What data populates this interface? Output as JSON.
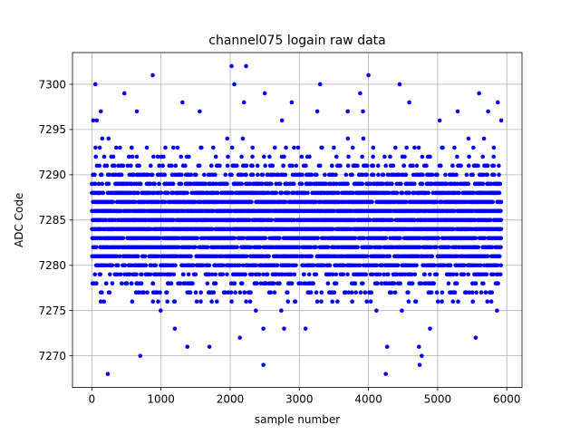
{
  "chart_data": {
    "type": "scatter",
    "title": "channel075 logain raw data",
    "xlabel": "sample number",
    "ylabel": "ADC Code",
    "xlim": [
      -280,
      6220
    ],
    "ylim": [
      7266.5,
      7303.5
    ],
    "xticks": [
      0,
      1000,
      2000,
      3000,
      4000,
      5000,
      6000
    ],
    "yticks": [
      7270,
      7275,
      7280,
      7285,
      7290,
      7295,
      7300
    ],
    "grid": true,
    "marker_color": "#0000ff",
    "n_samples": 5920,
    "x_range": [
      0,
      5920
    ],
    "y_core_range": [
      7276,
      7293
    ],
    "y_center": 7284.5,
    "outliers": [
      {
        "x": 230,
        "y": 7268
      },
      {
        "x": 4250,
        "y": 7268
      },
      {
        "x": 2480,
        "y": 7269
      },
      {
        "x": 4740,
        "y": 7269
      },
      {
        "x": 700,
        "y": 7270
      },
      {
        "x": 4770,
        "y": 7270
      },
      {
        "x": 1380,
        "y": 7271
      },
      {
        "x": 1700,
        "y": 7271
      },
      {
        "x": 4270,
        "y": 7271
      },
      {
        "x": 4730,
        "y": 7271
      },
      {
        "x": 2140,
        "y": 7272
      },
      {
        "x": 5550,
        "y": 7272
      },
      {
        "x": 1200,
        "y": 7273
      },
      {
        "x": 2480,
        "y": 7273
      },
      {
        "x": 2780,
        "y": 7273
      },
      {
        "x": 3090,
        "y": 7273
      },
      {
        "x": 4890,
        "y": 7273
      },
      {
        "x": 50,
        "y": 7300
      },
      {
        "x": 880,
        "y": 7301
      },
      {
        "x": 2020,
        "y": 7302
      },
      {
        "x": 2230,
        "y": 7302
      },
      {
        "x": 3300,
        "y": 7300
      },
      {
        "x": 4000,
        "y": 7301
      },
      {
        "x": 4450,
        "y": 7300
      },
      {
        "x": 2060,
        "y": 7300
      },
      {
        "x": 470,
        "y": 7299
      },
      {
        "x": 2500,
        "y": 7299
      },
      {
        "x": 3880,
        "y": 7299
      },
      {
        "x": 5600,
        "y": 7299
      },
      {
        "x": 1310,
        "y": 7298
      },
      {
        "x": 2200,
        "y": 7298
      },
      {
        "x": 2890,
        "y": 7298
      },
      {
        "x": 4590,
        "y": 7298
      },
      {
        "x": 5870,
        "y": 7298
      },
      {
        "x": 130,
        "y": 7297
      },
      {
        "x": 650,
        "y": 7297
      },
      {
        "x": 1560,
        "y": 7297
      },
      {
        "x": 3260,
        "y": 7297
      },
      {
        "x": 3700,
        "y": 7297
      },
      {
        "x": 3920,
        "y": 7297
      },
      {
        "x": 5290,
        "y": 7297
      },
      {
        "x": 5730,
        "y": 7297
      },
      {
        "x": 20,
        "y": 7296
      },
      {
        "x": 70,
        "y": 7296
      },
      {
        "x": 2750,
        "y": 7296
      },
      {
        "x": 5030,
        "y": 7296
      },
      {
        "x": 5920,
        "y": 7296
      }
    ]
  }
}
